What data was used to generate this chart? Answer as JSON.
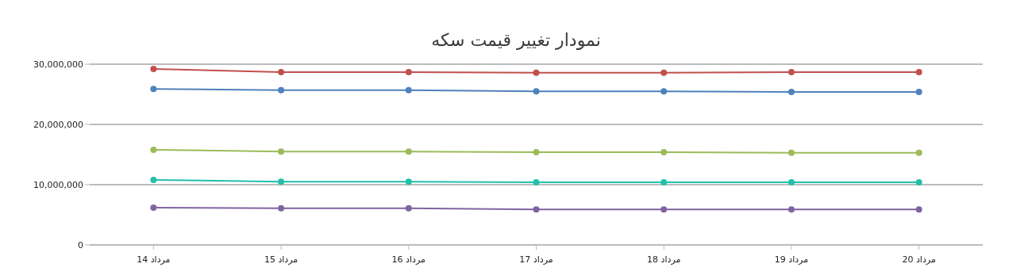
{
  "chart_data": {
    "type": "line",
    "title": "نمودار تغییر قیمت سکه",
    "categories": [
      "14 مرداد",
      "15 مرداد",
      "16 مرداد",
      "17 مرداد",
      "18 مرداد",
      "19 مرداد",
      "20 مرداد"
    ],
    "series": [
      {
        "color": "#c0504e",
        "values": [
          29200000,
          28700000,
          28700000,
          28600000,
          28600000,
          28700000,
          28700000
        ]
      },
      {
        "color": "#4f81bc",
        "values": [
          25900000,
          25700000,
          25700000,
          25500000,
          25500000,
          25400000,
          25400000
        ]
      },
      {
        "color": "#9bbb58",
        "values": [
          15800000,
          15500000,
          15500000,
          15400000,
          15400000,
          15300000,
          15300000
        ]
      },
      {
        "color": "#23bfaa",
        "values": [
          10800000,
          10500000,
          10500000,
          10400000,
          10400000,
          10400000,
          10400000
        ]
      },
      {
        "color": "#8064a1",
        "values": [
          6200000,
          6100000,
          6100000,
          5900000,
          5900000,
          5900000,
          5900000
        ]
      }
    ],
    "ylim": [
      0,
      30000000
    ],
    "yticks": [
      0,
      {
        "value": 10000000,
        "label": "10,000,000"
      },
      {
        "value": 20000000,
        "label": "20,000,000"
      },
      {
        "value": 30000000,
        "label": "30,000,000"
      }
    ],
    "grid": "y",
    "marker": "circle",
    "line_style": "solid"
  }
}
